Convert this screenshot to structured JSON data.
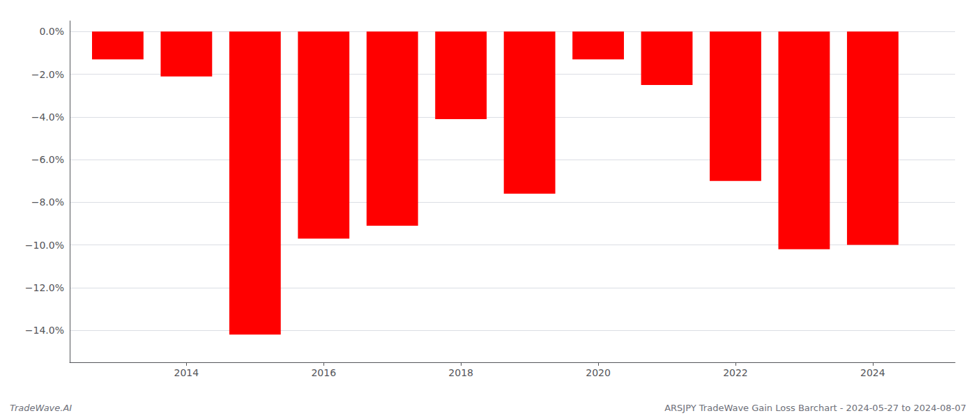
{
  "chart_data": {
    "type": "bar",
    "x": [
      2013,
      2014,
      2015,
      2016,
      2017,
      2018,
      2019,
      2020,
      2021,
      2022,
      2023,
      2024
    ],
    "values": [
      -1.3,
      -2.1,
      -14.2,
      -9.7,
      -9.1,
      -4.1,
      -7.6,
      -1.3,
      -2.5,
      -7.0,
      -10.2,
      -10.0
    ],
    "color": "#FF0000",
    "xlim": [
      2012.3,
      2025.2
    ],
    "xticks": [
      2014,
      2016,
      2018,
      2020,
      2022,
      2024
    ],
    "ylim": [
      -15.5,
      0.5
    ],
    "yticks": [
      {
        "value": 0.0,
        "label": "0.0%"
      },
      {
        "value": -2.0,
        "label": "−2.0%"
      },
      {
        "value": -4.0,
        "label": "−4.0%"
      },
      {
        "value": -6.0,
        "label": "−6.0%"
      },
      {
        "value": -8.0,
        "label": "−8.0%"
      },
      {
        "value": -10.0,
        "label": "−10.0%"
      },
      {
        "value": -12.0,
        "label": "−12.0%"
      },
      {
        "value": -14.0,
        "label": "−14.0%"
      }
    ],
    "grid": true,
    "annotations": [
      "TradeWave.AI",
      "ARSJPY TradeWave Gain Loss Barchart - 2024-05-27 to 2024-08-07"
    ]
  }
}
